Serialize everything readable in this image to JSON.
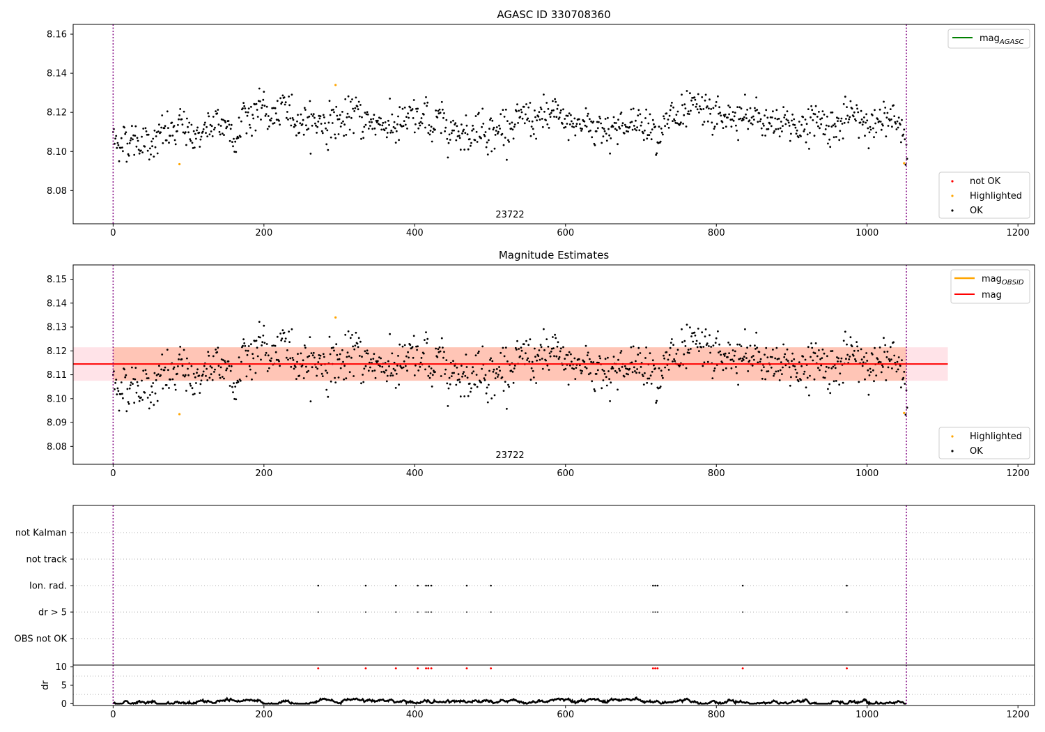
{
  "chart_data": [
    {
      "type": "scatter",
      "title": "AGASC ID 330708360",
      "xlim": [
        -53,
        1222
      ],
      "ylim": [
        8.063,
        8.165
      ],
      "xticks": [
        0,
        200,
        400,
        600,
        800,
        1000,
        1200
      ],
      "yticks": [
        8.08,
        8.1,
        8.12,
        8.14,
        8.16
      ],
      "ytick_labels": [
        "8.08",
        "8.10",
        "8.12",
        "8.14",
        "8.16"
      ],
      "vlines": [
        0,
        1052
      ],
      "annotation": "23722",
      "legend_upper": [
        "mag$_{AGASC}$"
      ],
      "legend_lower": [
        "not OK",
        "Highlighted",
        "OK"
      ],
      "highlighted": [
        {
          "x": 88,
          "y": 8.0935
        },
        {
          "x": 295,
          "y": 8.134
        },
        {
          "x": 1049,
          "y": 8.094
        }
      ],
      "series_ok_generated": {
        "n": 1054,
        "x_range": [
          0,
          1053
        ],
        "y_mean": 8.114
      }
    },
    {
      "type": "scatter",
      "title": "Magnitude Estimates",
      "xlim": [
        -53,
        1222
      ],
      "ylim": [
        8.0725,
        8.156
      ],
      "xticks": [
        0,
        200,
        400,
        600,
        800,
        1000,
        1200
      ],
      "yticks": [
        8.08,
        8.09,
        8.1,
        8.11,
        8.12,
        8.13,
        8.14,
        8.15
      ],
      "ytick_labels": [
        "8.08",
        "8.09",
        "8.10",
        "8.11",
        "8.12",
        "8.13",
        "8.14",
        "8.15"
      ],
      "vlines": [
        0,
        1052
      ],
      "annotation": "23722",
      "mag_line": {
        "value": 8.1145,
        "band_low": 8.1075,
        "band_high": 8.1215,
        "x_range": [
          -53,
          1107
        ]
      },
      "legend_upper": [
        "mag$_{OBSID}$",
        "mag"
      ],
      "legend_lower": [
        "Highlighted",
        "OK"
      ],
      "highlighted": [
        {
          "x": 88,
          "y": 8.0935
        },
        {
          "x": 295,
          "y": 8.134
        },
        {
          "x": 1049,
          "y": 8.094
        }
      ]
    },
    {
      "type": "scatter",
      "title": "",
      "xlim": [
        -53,
        1222
      ],
      "categories": [
        "not Kalman",
        "not track",
        "Ion. rad.",
        "dr > 5",
        "OBS not OK"
      ],
      "flag_times": [
        272,
        335,
        375,
        404,
        415,
        418,
        422,
        469,
        501,
        716,
        719,
        722,
        835,
        973
      ],
      "vlines": [
        0,
        1052
      ]
    },
    {
      "type": "line",
      "title": "",
      "ylabel": "dr",
      "xlim": [
        -53,
        1222
      ],
      "ylim": [
        -0.5,
        10.5
      ],
      "yticks": [
        0,
        5,
        10
      ],
      "ytick_labels": [
        "0",
        "5",
        "10"
      ],
      "xticks": [
        0,
        200,
        400,
        600,
        800,
        1000,
        1200
      ],
      "flag_times": [
        272,
        335,
        375,
        404,
        415,
        418,
        422,
        469,
        501,
        716,
        719,
        722,
        835,
        973
      ],
      "vlines": [
        0,
        1052
      ]
    }
  ],
  "colors": {
    "ok": "#000000",
    "highlighted": "#ffa500",
    "not_ok": "#ff0000",
    "agasc_line": "#008000",
    "obsid_line": "#ffa500",
    "mag_line": "#ff0000",
    "band": "#ffc0cb",
    "band_obsid": "#ffa07a",
    "vline": "#800080",
    "grid": "#b0b0b0"
  }
}
